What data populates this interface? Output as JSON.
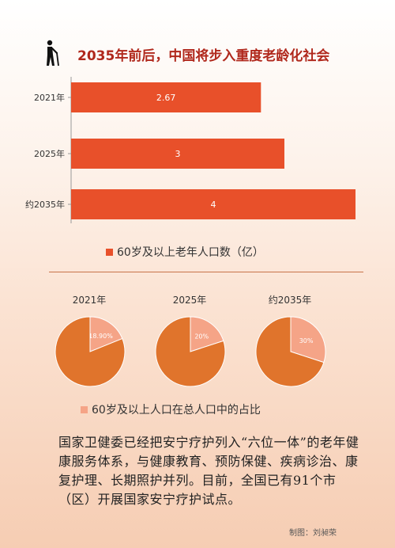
{
  "title": "2035年前后，中国将步入重度老龄化社会",
  "icon": "elderly-walker-icon",
  "colors": {
    "bar": "#e8502a",
    "pie_main": "#e0742c",
    "pie_slice": "#f5a487",
    "title": "#b0281c"
  },
  "chart_data": [
    {
      "type": "bar",
      "orientation": "horizontal",
      "categories": [
        "2021年",
        "2025年",
        "约2035年"
      ],
      "values": [
        2.67,
        3,
        4
      ],
      "data_labels": [
        "2.67",
        "3",
        "4"
      ],
      "legend": "60岁及以上老年人口数（亿）",
      "xlim": [
        0,
        4.5
      ]
    },
    {
      "type": "pie",
      "title": "2021年",
      "slices": [
        {
          "label": "18.90%",
          "value": 18.9
        },
        {
          "label": "",
          "value": 81.1
        }
      ]
    },
    {
      "type": "pie",
      "title": "2025年",
      "slices": [
        {
          "label": "20%",
          "value": 20
        },
        {
          "label": "",
          "value": 80
        }
      ]
    },
    {
      "type": "pie",
      "title": "约2035年",
      "slices": [
        {
          "label": "30%",
          "value": 30
        },
        {
          "label": "",
          "value": 70
        }
      ]
    }
  ],
  "pie_legend": "60岁及以上人口在总人口中的占比",
  "body_text": "国家卫健委已经把安宁疗护列入“六位一体”的老年健康服务体系，与健康教育、预防保健、疾病诊治、康复护理、长期照护并列。目前，全国已有91个市（区）开展国家安宁疗护试点。",
  "credit": "制图：刘昶荣"
}
